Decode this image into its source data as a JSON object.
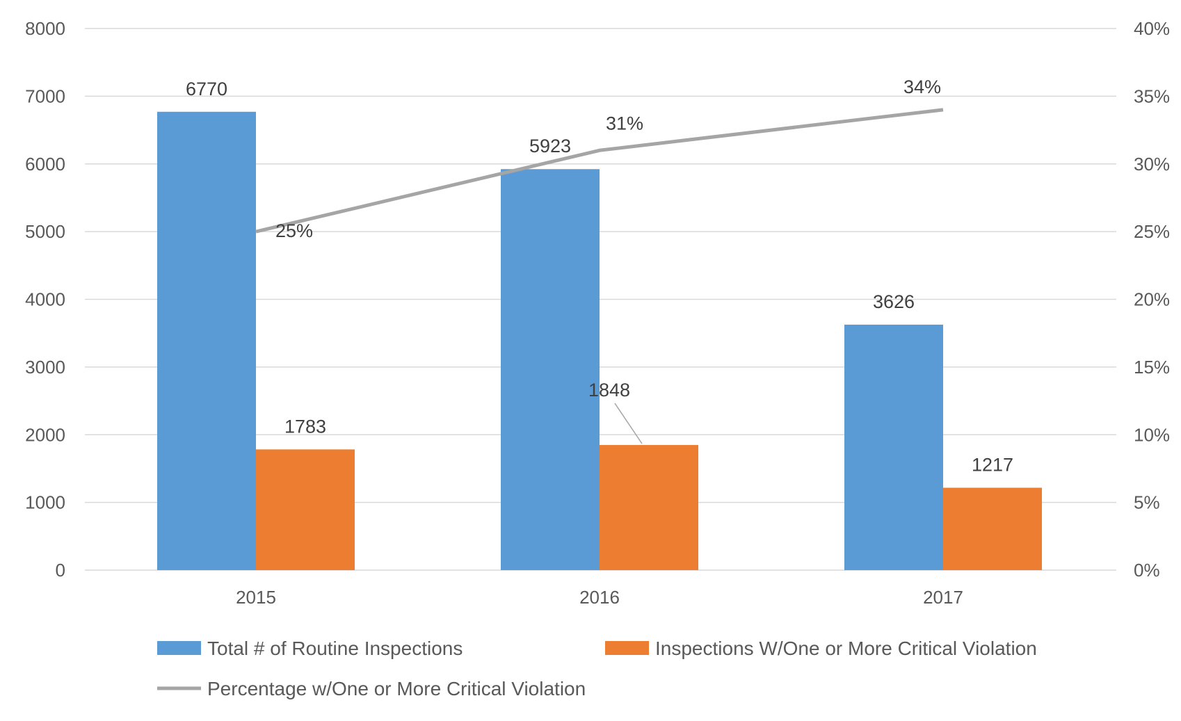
{
  "chart_data": {
    "type": "bar",
    "categories": [
      "2015",
      "2016",
      "2017"
    ],
    "series": [
      {
        "name": "Total # of Routine Inspections",
        "type": "bar",
        "axis": "left",
        "color": "#5b9bd5",
        "values": [
          6770,
          5923,
          3626
        ],
        "labels": [
          "6770",
          "5923",
          "3626"
        ]
      },
      {
        "name": "Inspections W/One or More Critical Violation",
        "type": "bar",
        "axis": "left",
        "color": "#ed7d31",
        "values": [
          1783,
          1848,
          1217
        ],
        "labels": [
          "1783",
          "1848",
          "1217"
        ]
      },
      {
        "name": "Percentage w/One or More Critical Violation",
        "type": "line",
        "axis": "right",
        "color": "#a5a5a5",
        "values": [
          25,
          31,
          34
        ],
        "labels": [
          "25%",
          "31%",
          "34%"
        ]
      }
    ],
    "y_left": {
      "range": [
        0,
        8000
      ],
      "ticks": [
        "0",
        "1000",
        "2000",
        "3000",
        "4000",
        "5000",
        "6000",
        "7000",
        "8000"
      ]
    },
    "y_right": {
      "range": [
        0,
        40
      ],
      "ticks": [
        "0%",
        "5%",
        "10%",
        "15%",
        "20%",
        "25%",
        "30%",
        "35%",
        "40%"
      ]
    },
    "grid": true,
    "legend_position": "bottom"
  }
}
